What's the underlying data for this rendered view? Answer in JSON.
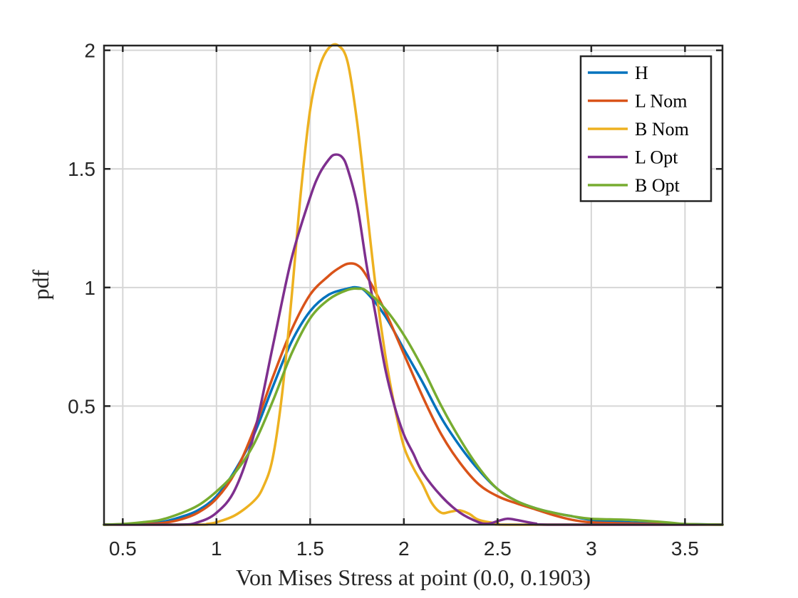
{
  "chart_data": {
    "type": "line",
    "title": "",
    "xlabel": "Von Mises Stress at point (0.0, 0.1903)",
    "ylabel": "pdf",
    "xlim": [
      0.4,
      3.7
    ],
    "ylim": [
      0,
      2.02
    ],
    "grid": true,
    "legend_position": "top-right",
    "xticks": [
      0.5,
      1,
      1.5,
      2,
      2.5,
      3,
      3.5
    ],
    "xtick_labels": [
      "0.5",
      "1",
      "1.5",
      "2",
      "2.5",
      "3",
      "3.5"
    ],
    "yticks": [
      0.5,
      1,
      1.5,
      2
    ],
    "ytick_labels": [
      "0.5",
      "1",
      "1.5",
      "2"
    ],
    "series": [
      {
        "name": "H",
        "color": "#0072BD",
        "points": [
          [
            0.4,
            0
          ],
          [
            0.6,
            0.003
          ],
          [
            0.7,
            0.01
          ],
          [
            0.8,
            0.03
          ],
          [
            0.9,
            0.06
          ],
          [
            1.0,
            0.12
          ],
          [
            1.1,
            0.23
          ],
          [
            1.2,
            0.38
          ],
          [
            1.3,
            0.58
          ],
          [
            1.4,
            0.77
          ],
          [
            1.5,
            0.9
          ],
          [
            1.6,
            0.97
          ],
          [
            1.7,
            0.995
          ],
          [
            1.75,
            1.0
          ],
          [
            1.8,
            0.98
          ],
          [
            1.9,
            0.88
          ],
          [
            2.0,
            0.74
          ],
          [
            2.1,
            0.6
          ],
          [
            2.2,
            0.45
          ],
          [
            2.3,
            0.33
          ],
          [
            2.4,
            0.23
          ],
          [
            2.5,
            0.15
          ],
          [
            2.6,
            0.1
          ],
          [
            2.7,
            0.07
          ],
          [
            2.8,
            0.05
          ],
          [
            2.9,
            0.035
          ],
          [
            3.0,
            0.02
          ],
          [
            3.2,
            0.01
          ],
          [
            3.4,
            0.004
          ],
          [
            3.7,
            0
          ]
        ]
      },
      {
        "name": "L Nom",
        "color": "#D95319",
        "points": [
          [
            0.4,
            0
          ],
          [
            0.6,
            0.002
          ],
          [
            0.7,
            0.006
          ],
          [
            0.8,
            0.02
          ],
          [
            0.9,
            0.05
          ],
          [
            1.0,
            0.11
          ],
          [
            1.1,
            0.22
          ],
          [
            1.2,
            0.4
          ],
          [
            1.3,
            0.62
          ],
          [
            1.4,
            0.82
          ],
          [
            1.5,
            0.97
          ],
          [
            1.6,
            1.05
          ],
          [
            1.65,
            1.08
          ],
          [
            1.7,
            1.1
          ],
          [
            1.75,
            1.095
          ],
          [
            1.8,
            1.05
          ],
          [
            1.9,
            0.9
          ],
          [
            2.0,
            0.72
          ],
          [
            2.1,
            0.54
          ],
          [
            2.2,
            0.38
          ],
          [
            2.3,
            0.26
          ],
          [
            2.4,
            0.17
          ],
          [
            2.5,
            0.12
          ],
          [
            2.6,
            0.09
          ],
          [
            2.7,
            0.065
          ],
          [
            2.8,
            0.04
          ],
          [
            2.9,
            0.02
          ],
          [
            3.0,
            0.01
          ],
          [
            3.2,
            0.005
          ],
          [
            3.4,
            0.002
          ],
          [
            3.7,
            0
          ]
        ]
      },
      {
        "name": "B Nom",
        "color": "#EDB120",
        "points": [
          [
            0.4,
            0
          ],
          [
            0.9,
            0
          ],
          [
            0.95,
            0.003
          ],
          [
            1.0,
            0.01
          ],
          [
            1.1,
            0.04
          ],
          [
            1.2,
            0.1
          ],
          [
            1.25,
            0.16
          ],
          [
            1.3,
            0.28
          ],
          [
            1.35,
            0.55
          ],
          [
            1.4,
            0.95
          ],
          [
            1.45,
            1.4
          ],
          [
            1.5,
            1.75
          ],
          [
            1.55,
            1.93
          ],
          [
            1.6,
            2.01
          ],
          [
            1.65,
            2.02
          ],
          [
            1.7,
            1.95
          ],
          [
            1.75,
            1.7
          ],
          [
            1.8,
            1.35
          ],
          [
            1.85,
            1.0
          ],
          [
            1.9,
            0.72
          ],
          [
            1.95,
            0.5
          ],
          [
            2.0,
            0.33
          ],
          [
            2.05,
            0.24
          ],
          [
            2.1,
            0.17
          ],
          [
            2.15,
            0.09
          ],
          [
            2.2,
            0.05
          ],
          [
            2.25,
            0.055
          ],
          [
            2.3,
            0.06
          ],
          [
            2.35,
            0.045
          ],
          [
            2.4,
            0.02
          ],
          [
            2.5,
            0.005
          ],
          [
            2.6,
            0
          ],
          [
            3.7,
            0
          ]
        ]
      },
      {
        "name": "L Opt",
        "color": "#7E2F8E",
        "points": [
          [
            0.4,
            0
          ],
          [
            0.8,
            0
          ],
          [
            0.9,
            0.01
          ],
          [
            1.0,
            0.05
          ],
          [
            1.1,
            0.15
          ],
          [
            1.2,
            0.38
          ],
          [
            1.3,
            0.75
          ],
          [
            1.4,
            1.12
          ],
          [
            1.5,
            1.38
          ],
          [
            1.55,
            1.48
          ],
          [
            1.6,
            1.54
          ],
          [
            1.63,
            1.56
          ],
          [
            1.67,
            1.55
          ],
          [
            1.7,
            1.5
          ],
          [
            1.75,
            1.35
          ],
          [
            1.8,
            1.1
          ],
          [
            1.85,
            0.88
          ],
          [
            1.9,
            0.66
          ],
          [
            1.95,
            0.5
          ],
          [
            2.0,
            0.38
          ],
          [
            2.05,
            0.3
          ],
          [
            2.1,
            0.22
          ],
          [
            2.2,
            0.12
          ],
          [
            2.3,
            0.05
          ],
          [
            2.4,
            0.01
          ],
          [
            2.45,
            0.004
          ],
          [
            2.5,
            0.015
          ],
          [
            2.55,
            0.025
          ],
          [
            2.6,
            0.02
          ],
          [
            2.7,
            0.005
          ],
          [
            2.8,
            0
          ],
          [
            3.7,
            0
          ]
        ]
      },
      {
        "name": "B Opt",
        "color": "#77AC30",
        "points": [
          [
            0.4,
            0
          ],
          [
            0.5,
            0.003
          ],
          [
            0.6,
            0.01
          ],
          [
            0.7,
            0.02
          ],
          [
            0.8,
            0.045
          ],
          [
            0.9,
            0.08
          ],
          [
            1.0,
            0.14
          ],
          [
            1.1,
            0.22
          ],
          [
            1.2,
            0.34
          ],
          [
            1.3,
            0.52
          ],
          [
            1.4,
            0.72
          ],
          [
            1.5,
            0.87
          ],
          [
            1.6,
            0.95
          ],
          [
            1.7,
            0.99
          ],
          [
            1.76,
            0.995
          ],
          [
            1.8,
            0.985
          ],
          [
            1.9,
            0.91
          ],
          [
            2.0,
            0.8
          ],
          [
            2.1,
            0.66
          ],
          [
            2.2,
            0.5
          ],
          [
            2.3,
            0.36
          ],
          [
            2.4,
            0.24
          ],
          [
            2.5,
            0.15
          ],
          [
            2.6,
            0.1
          ],
          [
            2.7,
            0.07
          ],
          [
            2.8,
            0.05
          ],
          [
            2.9,
            0.035
          ],
          [
            3.0,
            0.025
          ],
          [
            3.2,
            0.02
          ],
          [
            3.4,
            0.01
          ],
          [
            3.5,
            0.003
          ],
          [
            3.7,
            0
          ]
        ]
      }
    ]
  }
}
